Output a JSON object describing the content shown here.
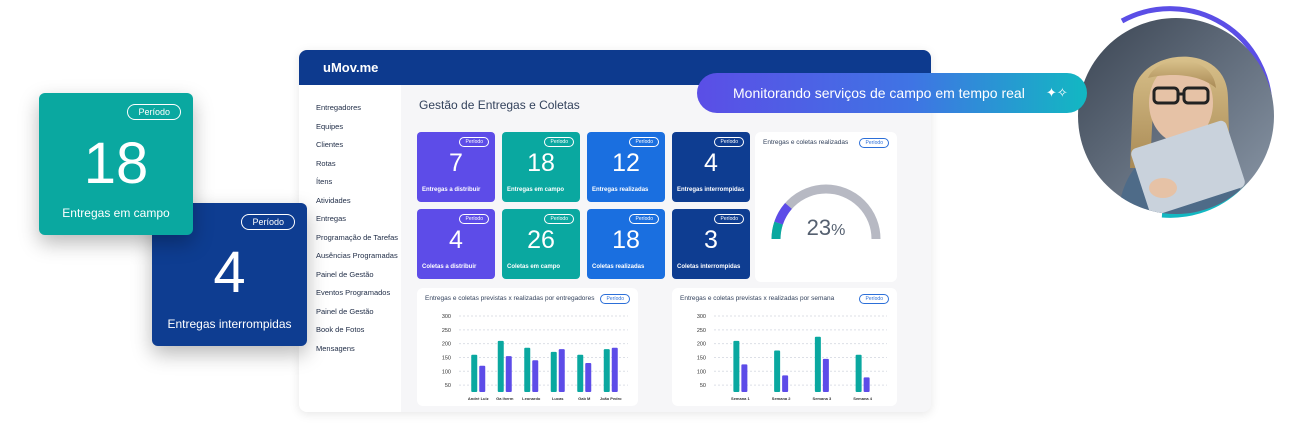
{
  "app": {
    "logo": "uMov.me",
    "page_title": "Gestão de Entregas e Coletas",
    "sidebar": [
      "Entregadores",
      "Equipes",
      "Clientes",
      "Rotas",
      "Ítens",
      "Atividades",
      "Entregas",
      "Programação de Tarefas",
      "Ausências Programadas",
      "Painel de Gestão",
      "Eventos Programados",
      "Painel de Gestão",
      "Book de Fotos",
      "Mensagens"
    ],
    "tiles": [
      {
        "value": "7",
        "label": "Entregas a distribuir",
        "badge": "Período",
        "color": "#5d4ce8"
      },
      {
        "value": "18",
        "label": "Entregas em campo",
        "badge": "Período",
        "color": "#0aa8a0"
      },
      {
        "value": "12",
        "label": "Entregas realizadas",
        "badge": "Período",
        "color": "#1a6fe0"
      },
      {
        "value": "4",
        "label": "Entregas interrompidas",
        "badge": "Período",
        "color": "#0e3d91"
      },
      {
        "value": "4",
        "label": "Coletas a distribuir",
        "badge": "Período",
        "color": "#5d4ce8"
      },
      {
        "value": "26",
        "label": "Coletas em campo",
        "badge": "Período",
        "color": "#0aa8a0"
      },
      {
        "value": "18",
        "label": "Coletas realizadas",
        "badge": "Período",
        "color": "#1a6fe0"
      },
      {
        "value": "3",
        "label": "Coletas interrompidas",
        "badge": "Período",
        "color": "#0e3d91"
      }
    ],
    "gauge": {
      "title": "Entregas e coletas realizadas",
      "badge": "Período",
      "value": "23",
      "unit": "%",
      "fraction": 0.23
    }
  },
  "floating_cards": {
    "campo": {
      "badge": "Período",
      "value": "18",
      "label": "Entregas em campo"
    },
    "interrompidas": {
      "badge": "Período",
      "value": "4",
      "label": "Entregas interrompidas"
    }
  },
  "pill": {
    "text": "Monitorando serviços de campo em tempo real",
    "icon": "sparkle-icon"
  },
  "chart_data": [
    {
      "type": "bar",
      "title": "Entregas e coletas previstas x realizadas por entregadores",
      "badge": "Período",
      "categories": [
        "André Luiz",
        "Ga iherm",
        "Leonardo",
        "Lucas",
        "Gab M",
        "João Pedro"
      ],
      "yticks": [
        300,
        250,
        200,
        150,
        100,
        50
      ],
      "ylim": [
        25,
        300
      ],
      "series": [
        {
          "values": [
            160,
            210,
            185,
            170,
            160,
            180
          ],
          "color": "#0aa8a0"
        },
        {
          "values": [
            120,
            155,
            140,
            180,
            130,
            185
          ],
          "color": "#5d4ce8"
        }
      ]
    },
    {
      "type": "bar",
      "title": "Entregas e coletas previstas x realizadas por semana",
      "badge": "Período",
      "categories": [
        "Semana 1",
        "Semana 2",
        "Semana 3",
        "Semana 4"
      ],
      "yticks": [
        300,
        250,
        200,
        150,
        100,
        50
      ],
      "ylim": [
        25,
        300
      ],
      "series": [
        {
          "values": [
            210,
            175,
            225,
            160
          ],
          "color": "#0aa8a0"
        },
        {
          "values": [
            125,
            85,
            145,
            78
          ],
          "color": "#5d4ce8"
        }
      ]
    }
  ]
}
